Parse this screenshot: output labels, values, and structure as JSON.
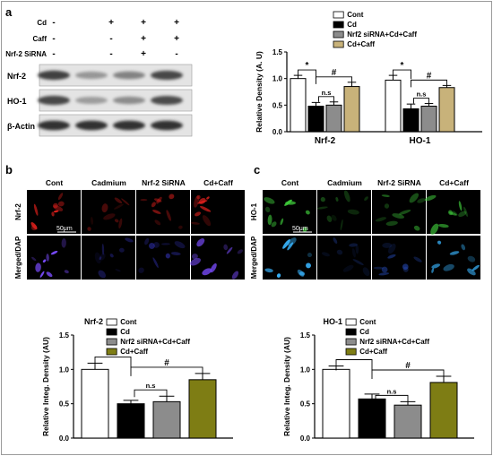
{
  "figure": {
    "panel_labels": [
      "a",
      "b",
      "c"
    ],
    "blot": {
      "treatment_rows": [
        {
          "label": "Cd",
          "signs": [
            "-",
            "+",
            "+",
            "+"
          ]
        },
        {
          "label": "Caff",
          "signs": [
            "-",
            "-",
            "+",
            "+"
          ]
        },
        {
          "label": "Nrf-2 SiRNA",
          "signs": [
            "-",
            "-",
            "+",
            "-"
          ]
        }
      ],
      "bands": [
        "Nrf-2",
        "HO-1",
        "β-Actin"
      ],
      "band_intensity": [
        [
          0.88,
          0.45,
          0.55,
          0.85
        ],
        [
          0.85,
          0.42,
          0.5,
          0.82
        ],
        [
          0.95,
          0.95,
          0.95,
          0.95
        ]
      ]
    },
    "micro_b": {
      "columns": [
        "Cont",
        "Cadmium",
        "Nrf-2 SiRNA",
        "Cd+Caff"
      ],
      "rows": [
        "Nrf-2",
        "Merged/DAP"
      ],
      "scale_bar": "50μm",
      "colors": {
        "row1": "#e0201c",
        "row2": "#7a4cff",
        "row2_dim": "#3a3ad0"
      }
    },
    "micro_c": {
      "columns": [
        "Cont",
        "Cadmium",
        "Nrf-2 SiRNA",
        "Cd+Caff"
      ],
      "rows": [
        "HO-1",
        "Merged/DAP"
      ],
      "scale_bar": "50μm",
      "colors": {
        "row1": "#3ec83a",
        "row2": "#39b5ff",
        "row2_dim": "#2a52c8"
      }
    }
  },
  "chart_data": [
    {
      "type": "bar",
      "panel": "a",
      "categories": [
        "Nrf-2",
        "HO-1"
      ],
      "ylabel": "Relative Density (A. U)",
      "ylim": [
        0,
        1.5
      ],
      "yticks": [
        "0.0",
        "0.5",
        "1.0",
        "1.5"
      ],
      "series": [
        {
          "name": "Cont",
          "color": "#ffffff",
          "values": [
            1.0,
            0.97
          ],
          "errors": [
            0.06,
            0.09
          ]
        },
        {
          "name": "Cd",
          "color": "#000000",
          "values": [
            0.48,
            0.43
          ],
          "errors": [
            0.07,
            0.09
          ]
        },
        {
          "name": "Nrf2 siRNA+Cd+Caff",
          "color": "#8c8c8c",
          "values": [
            0.5,
            0.48
          ],
          "errors": [
            0.06,
            0.05
          ]
        },
        {
          "name": "Cd+Caff",
          "color": "#c8b27a",
          "values": [
            0.85,
            0.83
          ],
          "errors": [
            0.08,
            0.04
          ]
        }
      ],
      "annotations": [
        "*",
        "#",
        "n.s",
        "*",
        "#",
        "n.s"
      ]
    },
    {
      "type": "bar",
      "panel": "b",
      "title": "Nrf-2",
      "categories": [
        "Cont",
        "Cd",
        "Nrf2 siRNA+Cd+Caff",
        "Cd+Caff"
      ],
      "ylabel": "Relative Integ. Density (AU)",
      "ylim": [
        0,
        1.5
      ],
      "yticks": [
        "0.0",
        "0.5",
        "1.0",
        "1.5"
      ],
      "values": [
        1.0,
        0.5,
        0.53,
        0.85
      ],
      "errors": [
        0.09,
        0.05,
        0.08,
        0.09
      ],
      "colors": [
        "#ffffff",
        "#000000",
        "#8c8c8c",
        "#7e7d14"
      ],
      "legend": [
        "Cont",
        "Cd",
        "Nrf2 siRNA+Cd+Caff",
        "Cd+Caff"
      ],
      "annotations": [
        "*",
        "#",
        "n.s"
      ]
    },
    {
      "type": "bar",
      "panel": "c",
      "title": "HO-1",
      "categories": [
        "Cont",
        "Cd",
        "Nrf2 siRNA+Cd+Caff",
        "Cd+Caff"
      ],
      "ylabel": "Relative Integ. Density (AU)",
      "ylim": [
        0,
        1.5
      ],
      "yticks": [
        "0.0",
        "0.5",
        "1.0",
        "1.5"
      ],
      "values": [
        1.0,
        0.57,
        0.48,
        0.81
      ],
      "errors": [
        0.05,
        0.07,
        0.05,
        0.09
      ],
      "colors": [
        "#ffffff",
        "#000000",
        "#8c8c8c",
        "#7e7d14"
      ],
      "legend": [
        "Cont",
        "Cd",
        "Nrf2 siRNA+Cd+Caff",
        "Cd+Caff"
      ],
      "annotations": [
        "*",
        "#",
        "n.s"
      ]
    }
  ]
}
